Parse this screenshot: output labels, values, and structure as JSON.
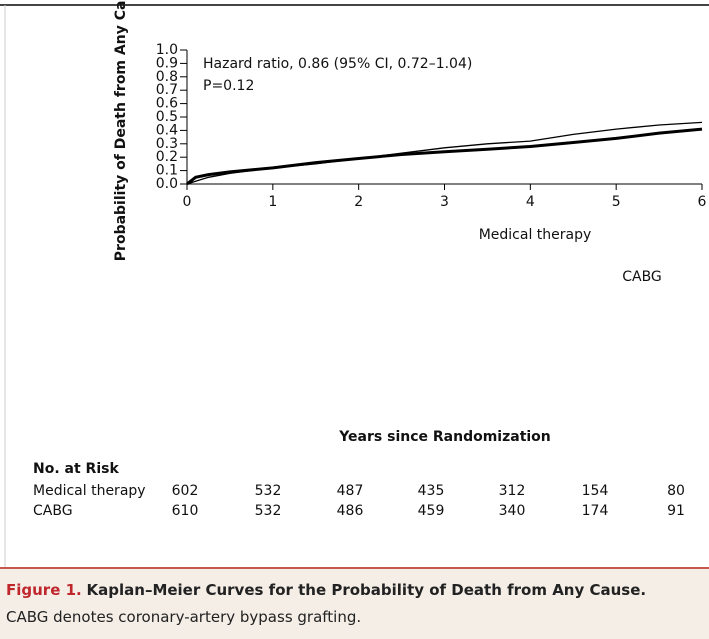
{
  "chart_data": {
    "type": "line",
    "x_label": "Years since Randomization",
    "y_label": "Probability of Death from Any Cause",
    "annotations": [
      "Hazard ratio, 0.86 (95% CI, 0.72–1.04)",
      "P=0.12"
    ],
    "x": [
      0,
      0.1,
      0.25,
      0.5,
      1,
      1.5,
      2,
      2.5,
      3,
      3.5,
      4,
      4.5,
      5,
      5.5,
      6
    ],
    "series": [
      {
        "name": "Medical therapy",
        "color": "#000000",
        "line_width": 1.3,
        "values": [
          0,
          0.02,
          0.05,
          0.08,
          0.12,
          0.15,
          0.19,
          0.23,
          0.27,
          0.3,
          0.32,
          0.37,
          0.41,
          0.44,
          0.46
        ]
      },
      {
        "name": "CABG",
        "color": "#000000",
        "line_width": 3,
        "values": [
          0,
          0.05,
          0.07,
          0.09,
          0.12,
          0.16,
          0.19,
          0.22,
          0.24,
          0.26,
          0.28,
          0.31,
          0.34,
          0.38,
          0.41
        ]
      }
    ],
    "xlim": [
      0,
      6
    ],
    "xticks": [
      0,
      1,
      2,
      3,
      4,
      5,
      6
    ],
    "ylim": [
      0,
      1
    ],
    "yticks": [
      {
        "value": 0,
        "label": "0.0"
      },
      0.1,
      0.2,
      0.3,
      0.4,
      0.5,
      0.6,
      0.7,
      0.8,
      0.9,
      {
        "value": 1,
        "label": "1.0"
      }
    ],
    "grid": false
  },
  "risk_table": {
    "title": "No. at Risk",
    "rows": [
      {
        "label": "Medical therapy",
        "values": [
          602,
          532,
          487,
          435,
          312,
          154,
          80
        ]
      },
      {
        "label": "CABG",
        "values": [
          610,
          532,
          486,
          459,
          340,
          174,
          91
        ]
      }
    ]
  },
  "caption": {
    "label": "Figure 1.",
    "title": "Kaplan–Meier Curves for the Probability of Death from Any Cause.",
    "text": "CABG denotes coronary-artery bypass grafting."
  }
}
